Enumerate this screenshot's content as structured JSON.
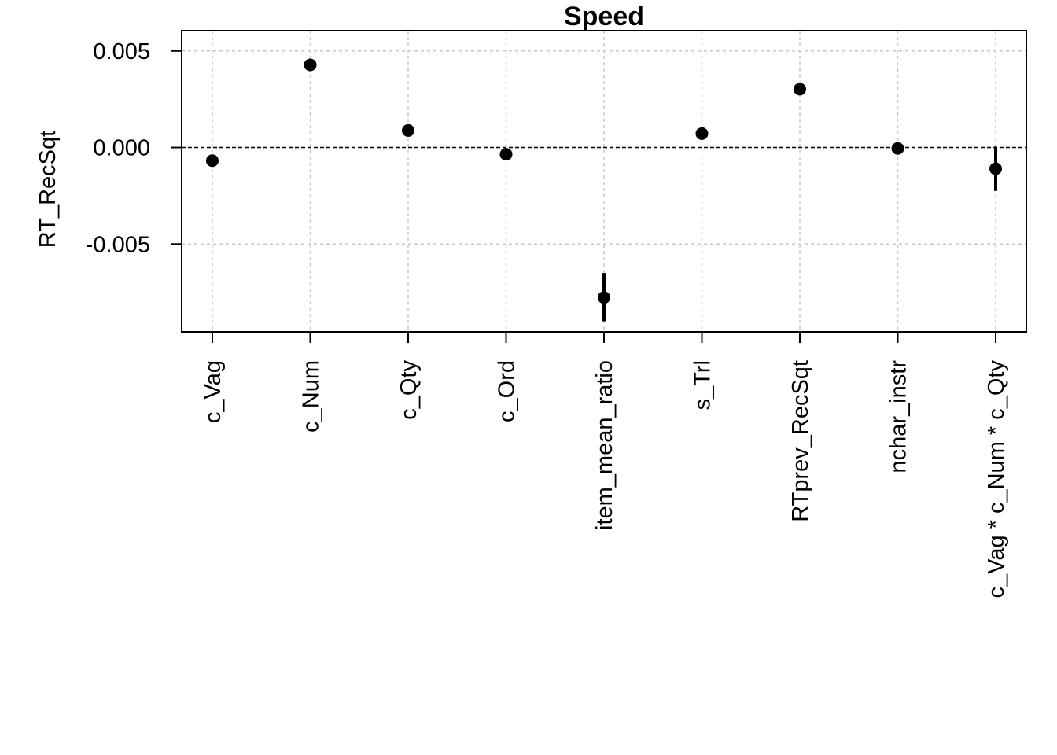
{
  "chart_data": {
    "type": "scatter",
    "title": "Speed",
    "xlabel": "",
    "ylabel": "RT_RecSqt",
    "categories": [
      "c_Vag",
      "c_Num",
      "c_Qty",
      "c_Ord",
      "item_mean_ratio",
      "s_Trl",
      "RTprev_RecSqt",
      "nchar_instr",
      "c_Vag * c_Num * c_Qty"
    ],
    "values": [
      -0.00068,
      0.00428,
      0.00088,
      -0.00035,
      -0.00777,
      0.00072,
      0.00302,
      -5e-05,
      -0.0011
    ],
    "lower": [
      -0.0008,
      0.00415,
      0.00075,
      -0.0005,
      -0.009,
      0.0006,
      0.0029,
      -0.00015,
      -0.00225
    ],
    "upper": [
      -0.00055,
      0.0044,
      0.001,
      -0.0002,
      -0.0065,
      0.00085,
      0.00315,
      5e-05,
      5e-05
    ],
    "yticks": [
      "0.005",
      "0.000",
      "-0.005"
    ],
    "ytick_values": [
      0.005,
      0.0,
      -0.005
    ],
    "ylim": [
      -0.00955,
      0.00605
    ],
    "reference_line": 0,
    "grid": true,
    "color": "#000000",
    "grid_color": "#c8c8c8"
  }
}
